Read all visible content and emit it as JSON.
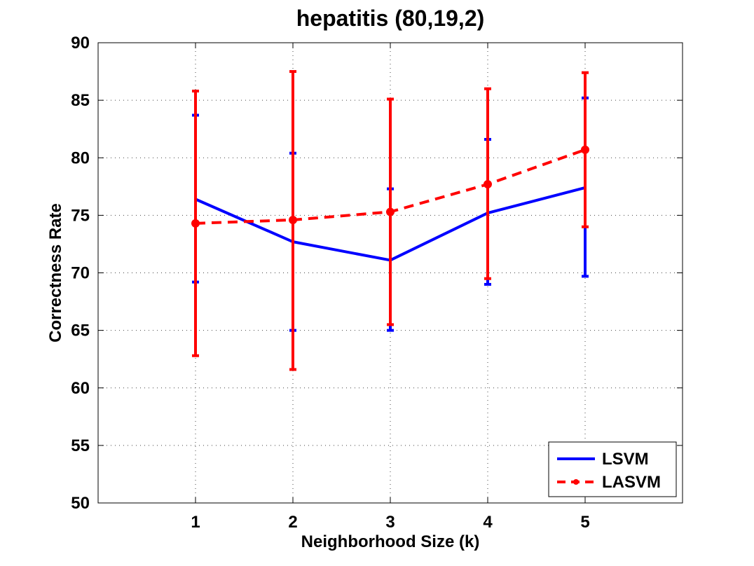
{
  "chart_data": {
    "type": "line",
    "title": "hepatitis (80,19,2)",
    "xlabel": "Neighborhood Size (k)",
    "ylabel": "Correctness Rate",
    "x": [
      1,
      2,
      3,
      4,
      5
    ],
    "x_tick_labels": [
      "1",
      "2",
      "3",
      "4",
      "5"
    ],
    "xlim": [
      0,
      6
    ],
    "ylim": [
      50,
      90
    ],
    "y_ticks": [
      50,
      55,
      60,
      65,
      70,
      75,
      80,
      85,
      90
    ],
    "y_tick_labels": [
      "50",
      "55",
      "60",
      "65",
      "70",
      "75",
      "80",
      "85",
      "90"
    ],
    "grid": true,
    "legend_position": "bottom-right",
    "series": [
      {
        "name": "LSVM",
        "color": "#0000ff",
        "line_style": "solid",
        "marker": "none",
        "values": [
          76.4,
          72.7,
          71.1,
          75.2,
          77.4
        ],
        "error_low": [
          69.2,
          65.0,
          65.0,
          69.0,
          69.7
        ],
        "error_high": [
          83.7,
          80.4,
          77.3,
          81.6,
          85.2
        ]
      },
      {
        "name": "LASVM",
        "color": "#ff0000",
        "line_style": "dashed",
        "marker": "circle",
        "values": [
          74.3,
          74.6,
          75.3,
          77.7,
          80.7
        ],
        "error_low": [
          62.8,
          61.6,
          65.5,
          69.5,
          74.0
        ],
        "error_high": [
          85.8,
          87.5,
          85.1,
          86.0,
          87.4
        ]
      }
    ]
  }
}
